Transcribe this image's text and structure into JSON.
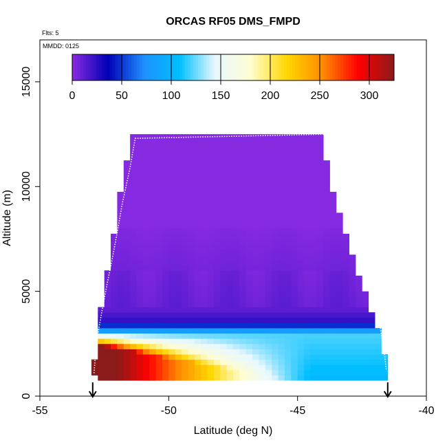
{
  "chart_data": {
    "type": "heatmap",
    "title": "ORCAS RF05 DMS_FMPD",
    "flights_label": "Flts: 5",
    "date_label": "MMDD: 0125",
    "xlabel": "Latitude (deg N)",
    "ylabel": "Altitude (m)",
    "xlim": [
      -55,
      -40
    ],
    "ylim": [
      0,
      17000
    ],
    "xticks": [
      -55,
      -50,
      -45,
      -40
    ],
    "yticks": [
      0,
      5000,
      10000,
      15000
    ],
    "colorbar": {
      "range": [
        0,
        325
      ],
      "ticks": [
        0,
        50,
        100,
        150,
        200,
        250,
        300
      ],
      "colors": [
        "#8a2be2",
        "#0000b4",
        "#1e90ff",
        "#00bfff",
        "#e8f8ff",
        "#fffdd0",
        "#ffd700",
        "#ff8c00",
        "#ff0000",
        "#8b1a1a"
      ]
    },
    "grid": false,
    "legend": "colorbar-top",
    "cell_width_deg": 0.25,
    "cell_height_m": 250,
    "extent": {
      "x": [
        -52.8,
        -41.4,
        -41.4,
        -41.6,
        -41.9,
        -42.2,
        -42.5,
        -42.8,
        -43.2,
        -43.5,
        -43.8,
        -44.1,
        -51.4,
        -51.9,
        -52.2,
        -52.5,
        -52.8,
        -52.9,
        -52.8
      ],
      "y": [
        800,
        800,
        1300,
        1800,
        3300,
        4200,
        5400,
        6500,
        8000,
        9200,
        10800,
        12500,
        12600,
        9500,
        7300,
        5000,
        3000,
        1200,
        800
      ]
    },
    "arrows_x": [
      -52.95,
      -41.5
    ],
    "flight_track": {
      "x": [
        -52.9,
        -52.8,
        -52.6,
        -52.4,
        -52.2,
        -52.0,
        -51.8,
        -51.5,
        -51.3,
        -43.8,
        -43.6,
        -43.3,
        -43.0,
        -42.7,
        -42.5,
        -42.3,
        -42.1,
        -41.95,
        -41.8,
        -41.65,
        -41.55
      ],
      "y": [
        1100,
        2600,
        4000,
        5300,
        6500,
        7800,
        9200,
        10900,
        12300,
        12500,
        12100,
        11000,
        9800,
        8700,
        7400,
        6100,
        5000,
        4200,
        3300,
        2300,
        1200
      ]
    }
  }
}
